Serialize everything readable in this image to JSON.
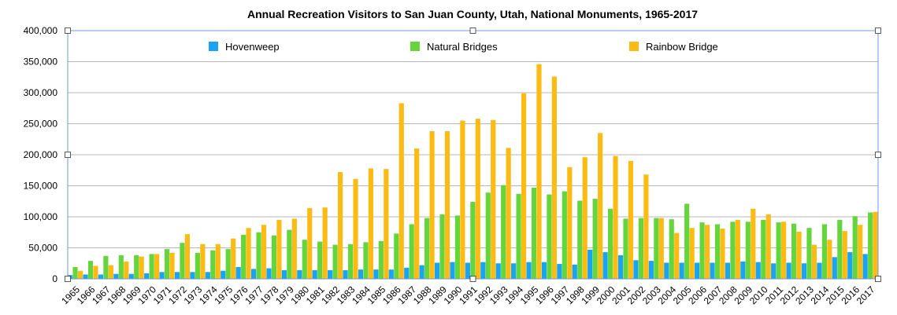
{
  "chart_data": {
    "type": "bar",
    "title": "Annual Recreation Visitors to San Juan County, Utah, National Monuments, 1965-2017",
    "xlabel": "",
    "ylabel": "",
    "ylim": [
      0,
      400000
    ],
    "yticks": [
      0,
      50000,
      100000,
      150000,
      200000,
      250000,
      300000,
      350000,
      400000
    ],
    "ytick_labels": [
      "0",
      "50,000",
      "100,000",
      "150,000",
      "200,000",
      "250,000",
      "300,000",
      "350,000",
      "400,000"
    ],
    "grid": true,
    "legend_position": "top",
    "categories": [
      "1965",
      "1966",
      "1967",
      "1968",
      "1969",
      "1970",
      "1971",
      "1972",
      "1973",
      "1974",
      "1975",
      "1976",
      "1977",
      "1978",
      "1979",
      "1980",
      "1981",
      "1982",
      "1983",
      "1984",
      "1985",
      "1986",
      "1987",
      "1988",
      "1989",
      "1990",
      "1991",
      "1992",
      "1993",
      "1994",
      "1995",
      "1996",
      "1997",
      "1998",
      "1999",
      "2000",
      "2001",
      "2002",
      "2003",
      "2004",
      "2005",
      "2006",
      "2007",
      "2008",
      "2009",
      "2010",
      "2011",
      "2012",
      "2013",
      "2014",
      "2015",
      "2016",
      "2017"
    ],
    "series": [
      {
        "name": "Hovenweep",
        "color": "#1aa3f0",
        "values": [
          6000,
          7000,
          7000,
          8000,
          8000,
          9000,
          11000,
          11000,
          11000,
          11000,
          13000,
          19000,
          16000,
          17000,
          14000,
          14000,
          14000,
          14000,
          14000,
          15000,
          15000,
          15000,
          18000,
          22000,
          26000,
          27000,
          26000,
          27000,
          25000,
          25000,
          27000,
          27000,
          24000,
          23000,
          47000,
          43000,
          38000,
          30000,
          29000,
          26000,
          26000,
          26000,
          26000,
          26000,
          28000,
          27000,
          25000,
          26000,
          25000,
          26000,
          35000,
          43000,
          40000
        ]
      },
      {
        "name": "Natural Bridges",
        "color": "#64d63b",
        "values": [
          19000,
          29000,
          37000,
          38000,
          38000,
          40000,
          48000,
          58000,
          42000,
          46000,
          48000,
          71000,
          75000,
          70000,
          79000,
          63000,
          60000,
          55000,
          56000,
          59000,
          61000,
          73000,
          88000,
          98000,
          104000,
          102000,
          124000,
          139000,
          151000,
          137000,
          147000,
          136000,
          141000,
          126000,
          129000,
          113000,
          97000,
          98000,
          98000,
          96000,
          121000,
          91000,
          88000,
          92000,
          92000,
          95000,
          91000,
          89000,
          82000,
          88000,
          95000,
          101000,
          107000
        ]
      },
      {
        "name": "Rainbow Bridge",
        "color": "#fcbb12",
        "values": [
          13000,
          21000,
          22000,
          28000,
          36000,
          40000,
          42000,
          72000,
          56000,
          56000,
          65000,
          82000,
          87000,
          95000,
          97000,
          114000,
          115000,
          172000,
          161000,
          178000,
          177000,
          283000,
          210000,
          238000,
          238000,
          255000,
          258000,
          256000,
          211000,
          299000,
          346000,
          326000,
          180000,
          196000,
          235000,
          198000,
          190000,
          168000,
          98000,
          74000,
          82000,
          87000,
          81000,
          95000,
          113000,
          104000,
          92000,
          76000,
          55000,
          63000,
          77000,
          87000,
          108000
        ]
      }
    ]
  }
}
